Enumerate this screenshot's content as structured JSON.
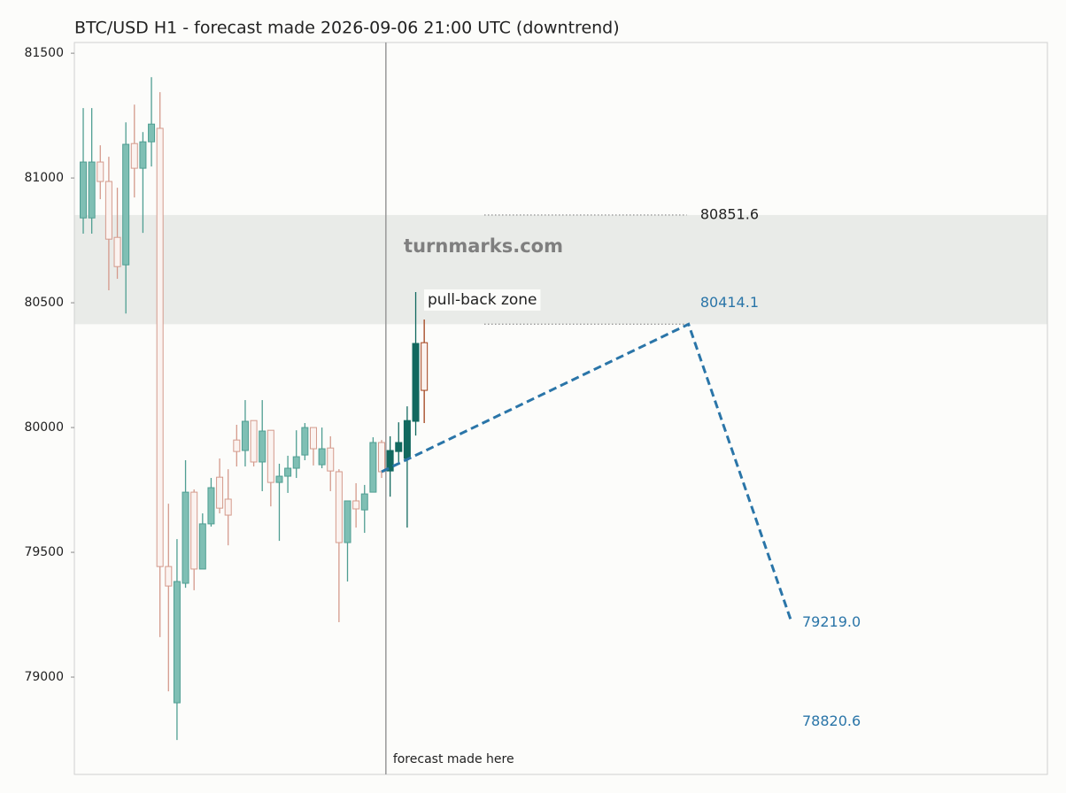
{
  "chart_data": {
    "type": "candlestick",
    "title": "BTC/USD H1 - forecast made 2026-09-06 21:00 UTC (downtrend)",
    "watermark": "turnmarks.com",
    "ylim": [
      78610,
      81543
    ],
    "yticks": [
      79000,
      79500,
      80000,
      80500,
      81000,
      81500
    ],
    "xlim": [
      -1.04,
      113.1
    ],
    "colors": {
      "up": "#7fbfb4",
      "up_edge": "#4f9e92",
      "down": "#fbf3f0",
      "down_edge": "#d49a8c",
      "outcome_up": "#12695f",
      "outcome_down": "#fbf3f0",
      "outcome_down_edge": "#a3431d",
      "forecast": "#2a75a8",
      "zone": "#e9ebe8"
    },
    "candles": {
      "x": [
        0,
        1,
        2,
        3,
        4,
        5,
        6,
        7,
        8,
        9,
        10,
        11,
        12,
        13,
        14,
        15,
        16,
        17,
        18,
        19,
        20,
        21,
        22,
        23,
        24,
        25,
        26,
        27,
        28,
        29,
        30,
        31,
        32,
        33,
        34,
        35
      ],
      "open": [
        80840,
        80840,
        81064,
        80986,
        80762,
        80652,
        81138,
        81039,
        81145,
        81199,
        79443,
        78897,
        79376,
        79741,
        79433,
        79614,
        79801,
        79713,
        79950,
        79908,
        80028,
        79862,
        79989,
        79780,
        79805,
        79837,
        79890,
        80000,
        79851,
        79918,
        79823,
        79539,
        79706,
        79670,
        79741,
        79940
      ],
      "high": [
        81280,
        81280,
        81131,
        81085,
        80961,
        81223,
        81294,
        81184,
        81404,
        81344,
        79695,
        79553,
        79869,
        79752,
        79656,
        79798,
        79876,
        79833,
        80011,
        80110,
        80028,
        80110,
        79989,
        79855,
        79887,
        79989,
        80018,
        80000,
        80000,
        79965,
        79833,
        79706,
        79777,
        79770,
        79961,
        79950
      ],
      "low": [
        80777,
        80777,
        80915,
        80550,
        80596,
        80457,
        80922,
        80780,
        81046,
        79160,
        78943,
        78748,
        79358,
        79348,
        79433,
        79603,
        79656,
        79528,
        79844,
        79844,
        79844,
        79745,
        79684,
        79546,
        79738,
        79798,
        79869,
        79848,
        79837,
        79745,
        79220,
        79383,
        79599,
        79578,
        79741,
        79798
      ],
      "close": [
        81064,
        81064,
        80986,
        80755,
        80645,
        81135,
        81039,
        81145,
        81216,
        79443,
        79365,
        79383,
        79741,
        79433,
        79614,
        79759,
        79677,
        79649,
        79904,
        80025,
        79862,
        79986,
        79780,
        79805,
        79837,
        79883,
        80000,
        79915,
        79915,
        79826,
        79539,
        79706,
        79674,
        79734,
        79940,
        79823
      ]
    },
    "outcome": {
      "x": [
        36,
        37,
        38,
        39,
        40
      ],
      "open": [
        79826,
        79904,
        79876,
        80025,
        80340
      ],
      "high": [
        79965,
        80021,
        80085,
        80543,
        80433
      ],
      "low": [
        79723,
        79862,
        79599,
        79968,
        80018
      ],
      "close": [
        79908,
        79940,
        80028,
        80337,
        80149
      ]
    },
    "forecast": {
      "x": [
        35,
        71,
        83.1
      ],
      "y": [
        79823,
        80414.1,
        79219
      ]
    },
    "forecast_marker": {
      "x": 35.5,
      "label": "forecast made here"
    },
    "zone_label": "pull-back zone",
    "price_labels": [
      80851.6,
      80414.1,
      {
        "value": 79219,
        "label": "79219.0"
      },
      78820.6
    ]
  }
}
